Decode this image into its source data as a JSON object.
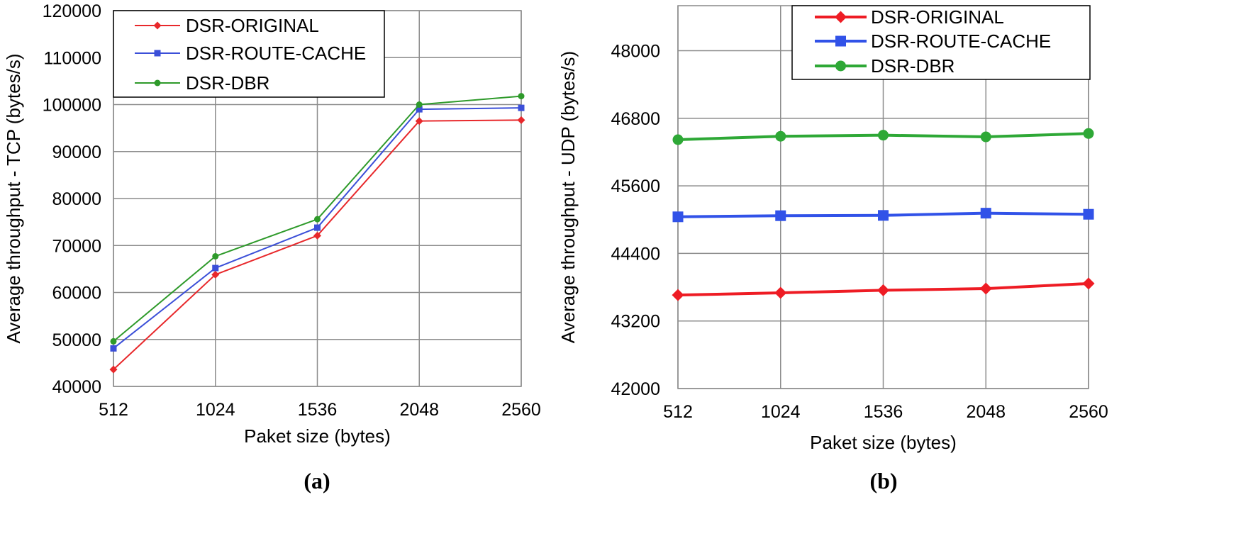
{
  "chart_data": [
    {
      "id": "a",
      "type": "line",
      "caption": "(a)",
      "xlabel": "Paket size (bytes)",
      "ylabel": "Average throughput - TCP (bytes/s)",
      "categories": [
        "512",
        "1024",
        "1536",
        "2048",
        "2560"
      ],
      "ylim": [
        40000,
        120000
      ],
      "yticks": [
        "40000",
        "50000",
        "60000",
        "70000",
        "80000",
        "90000",
        "100000",
        "110000",
        "120000"
      ],
      "grid": true,
      "legend_position": "top-left",
      "series": [
        {
          "name": "DSR-ORIGINAL",
          "color": "#e8282b",
          "marker": "diamond",
          "values": [
            43600,
            63800,
            72100,
            96500,
            96700
          ]
        },
        {
          "name": "DSR-ROUTE-CACHE",
          "color": "#3b4fd8",
          "marker": "square",
          "values": [
            48100,
            65200,
            73800,
            99000,
            99300
          ]
        },
        {
          "name": "DSR-DBR",
          "color": "#2e9a2a",
          "marker": "circle",
          "values": [
            49600,
            67700,
            75600,
            100000,
            101800
          ]
        }
      ]
    },
    {
      "id": "b",
      "type": "line",
      "caption": "(b)",
      "xlabel": "Paket size (bytes)",
      "ylabel": "Average throughput - UDP (bytes/s)",
      "categories": [
        "512",
        "1024",
        "1536",
        "2048",
        "2560"
      ],
      "ylim": [
        42000,
        48800
      ],
      "yticks": [
        "42000",
        "43200",
        "44400",
        "45600",
        "46800",
        "48000"
      ],
      "ytick_values": [
        42000,
        43200,
        44400,
        45600,
        46800,
        48000
      ],
      "grid": true,
      "legend_position": "top-right",
      "series": [
        {
          "name": "DSR-ORIGINAL",
          "color": "#ee1c24",
          "marker": "diamond",
          "values": [
            43660,
            43700,
            43745,
            43775,
            43865
          ]
        },
        {
          "name": "DSR-ROUTE-CACHE",
          "color": "#3152e8",
          "marker": "square",
          "values": [
            45050,
            45070,
            45075,
            45115,
            45095
          ]
        },
        {
          "name": "DSR-DBR",
          "color": "#2ea836",
          "marker": "circle",
          "values": [
            46420,
            46480,
            46500,
            46470,
            46530
          ]
        }
      ]
    }
  ]
}
